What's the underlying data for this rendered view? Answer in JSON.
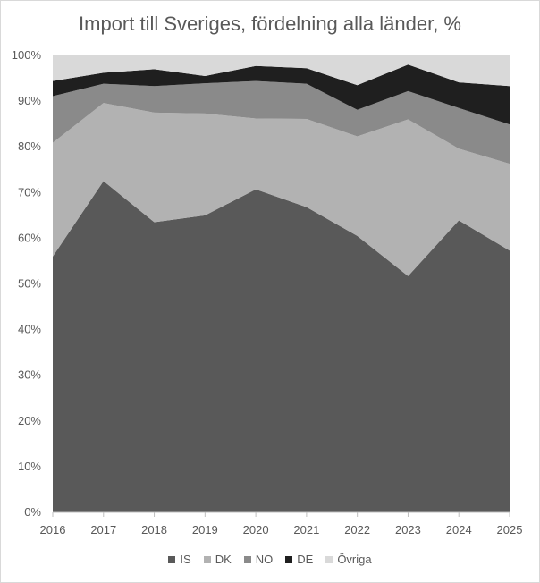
{
  "chart_data": {
    "type": "area",
    "stacked": "percent",
    "title": "Import till Sveriges, fördelning alla länder, %",
    "xlabel": "",
    "ylabel": "",
    "ylim": [
      0,
      100
    ],
    "x": [
      "2016",
      "2017",
      "2018",
      "2019",
      "2020",
      "2021",
      "2022",
      "2023",
      "2024",
      "2025"
    ],
    "y_ticks": [
      "0%",
      "10%",
      "20%",
      "30%",
      "40%",
      "50%",
      "60%",
      "70%",
      "80%",
      "90%",
      "100%"
    ],
    "legend_position": "bottom",
    "series": [
      {
        "name": "IS",
        "color": "#595959",
        "values": [
          56.0,
          72.5,
          63.5,
          65.0,
          70.7,
          66.8,
          60.5,
          51.7,
          63.9,
          57.3
        ]
      },
      {
        "name": "DK",
        "color": "#b2b2b2",
        "values": [
          24.9,
          17.1,
          24.0,
          22.3,
          15.5,
          19.3,
          21.8,
          34.3,
          15.7,
          19.0
        ]
      },
      {
        "name": "NO",
        "color": "#8a8a8a",
        "values": [
          10.2,
          4.2,
          5.8,
          6.6,
          8.2,
          7.7,
          5.8,
          6.2,
          8.9,
          8.6
        ]
      },
      {
        "name": "DE",
        "color": "#1f1f1f",
        "values": [
          3.3,
          2.4,
          3.7,
          1.6,
          3.3,
          3.4,
          5.4,
          5.8,
          5.6,
          8.4
        ]
      },
      {
        "name": "Övriga",
        "color": "#d9d9d9",
        "values": [
          5.6,
          3.8,
          3.0,
          4.5,
          2.3,
          2.8,
          6.5,
          2.0,
          5.9,
          6.7
        ]
      }
    ]
  }
}
